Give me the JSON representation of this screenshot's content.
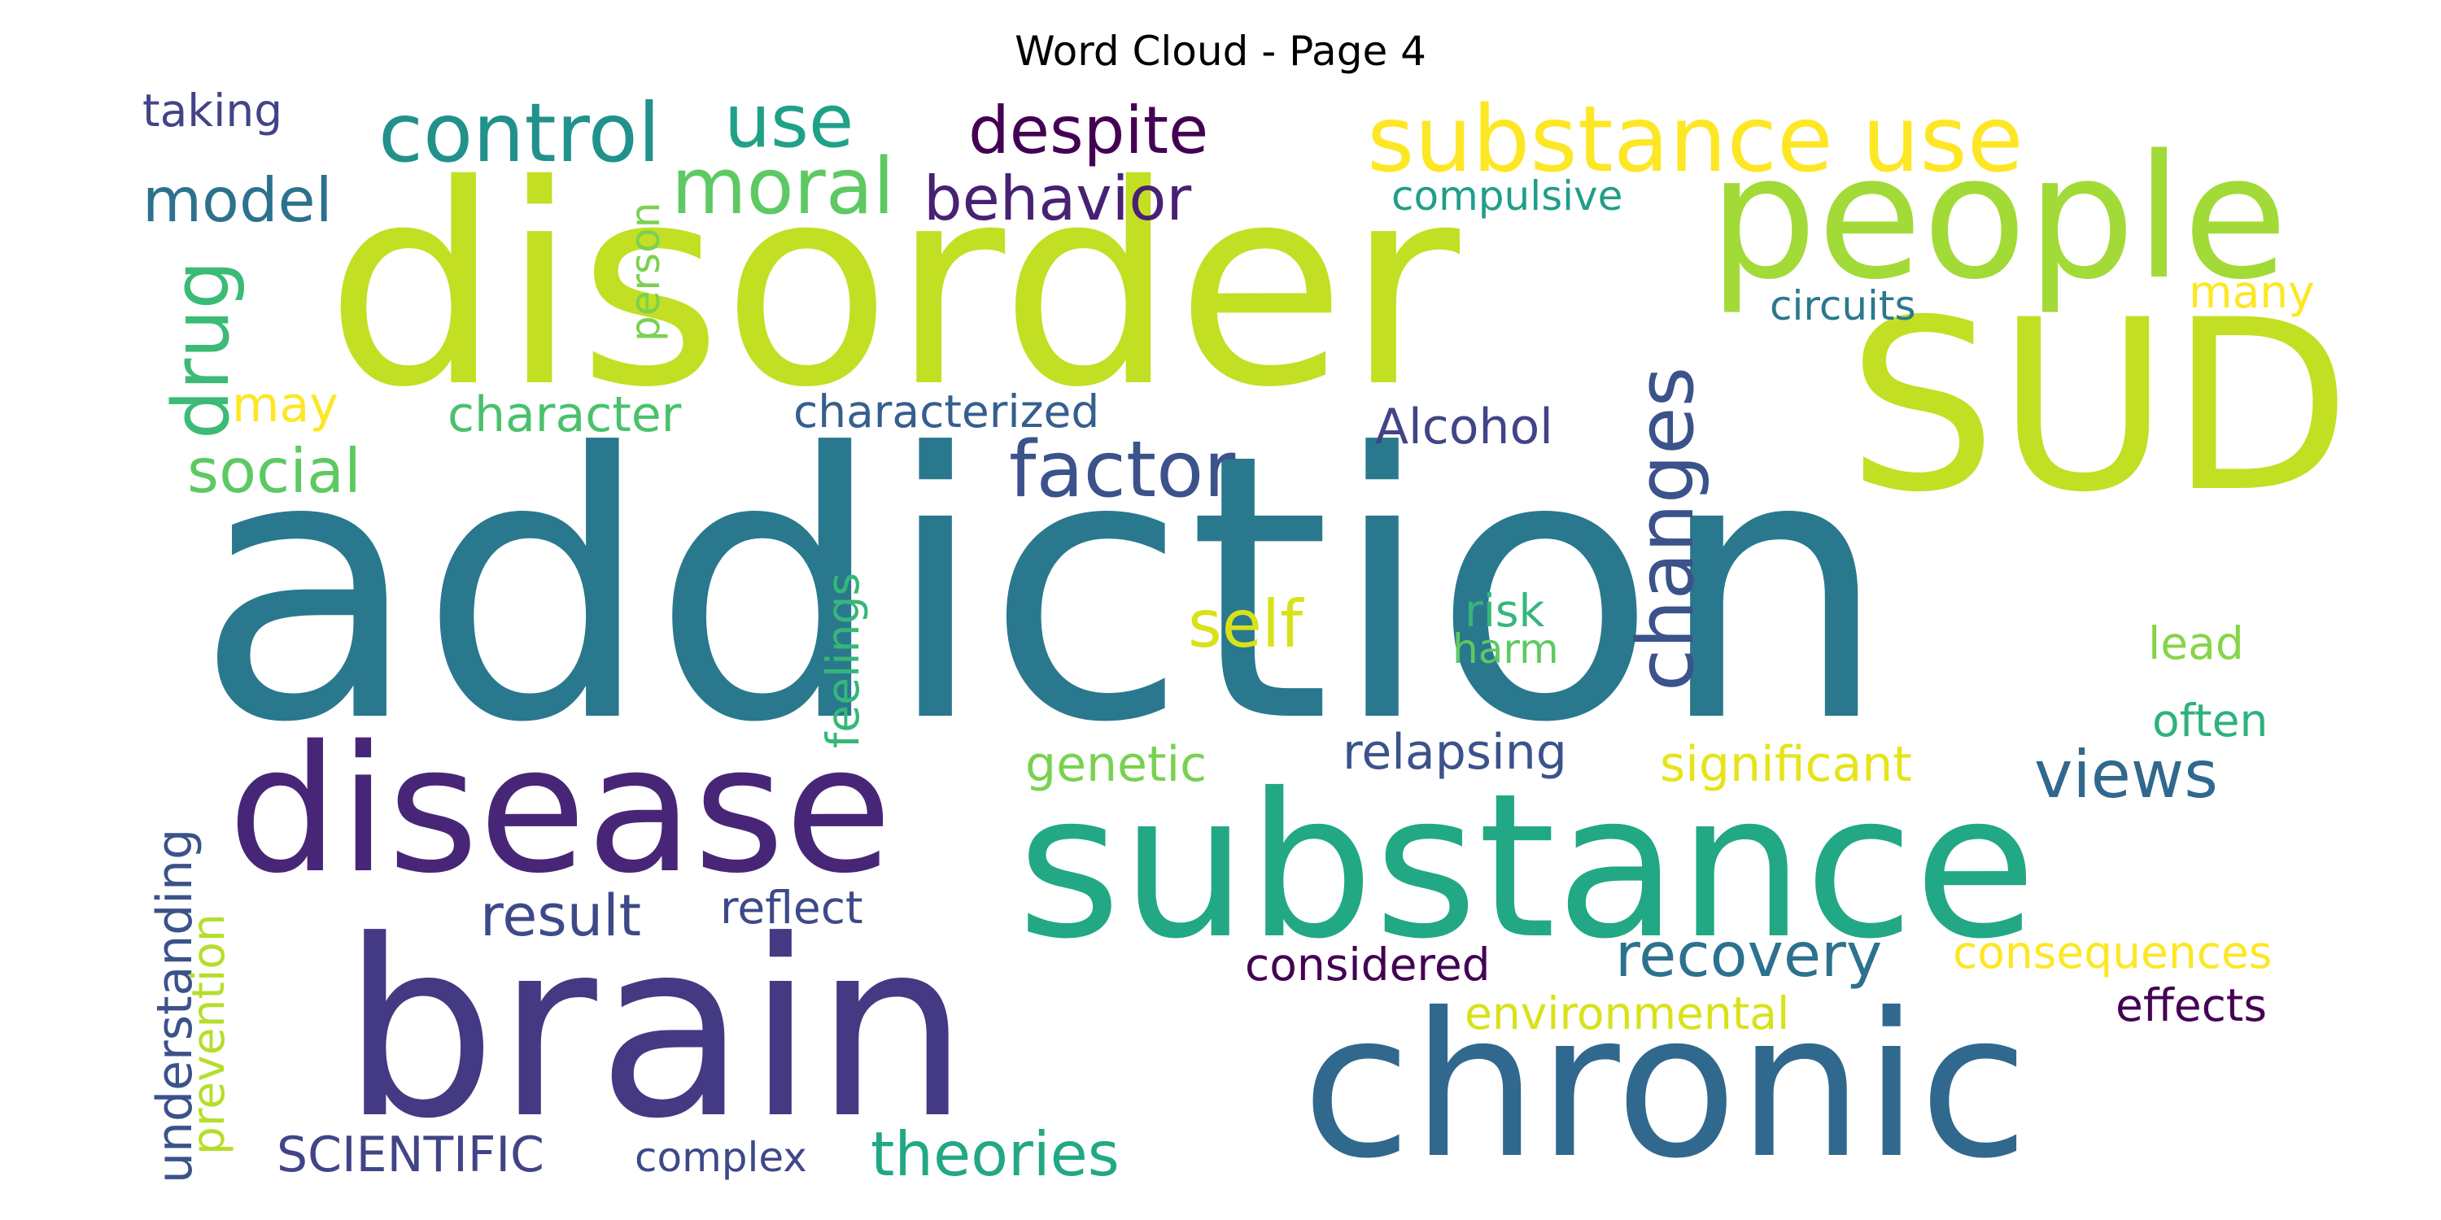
{
  "title": "Word Cloud - Page 4",
  "words": [
    {
      "text": "addiction",
      "color": "#2a788e"
    },
    {
      "text": "disorder",
      "color": "#c2df23"
    },
    {
      "text": "substance",
      "color": "#22a884"
    },
    {
      "text": "brain",
      "color": "#443a83"
    },
    {
      "text": "chronic",
      "color": "#31688e"
    },
    {
      "text": "SUD",
      "color": "#c2df23"
    },
    {
      "text": "people",
      "color": "#a2da37"
    },
    {
      "text": "disease",
      "color": "#482677"
    },
    {
      "text": "substance use",
      "color": "#fde725"
    },
    {
      "text": "changes",
      "color": "#3b528b"
    },
    {
      "text": "control",
      "color": "#21918c"
    },
    {
      "text": "factor",
      "color": "#3b528b"
    },
    {
      "text": "moral",
      "color": "#5ec962"
    },
    {
      "text": "use",
      "color": "#1fa187"
    },
    {
      "text": "despite",
      "color": "#440154"
    },
    {
      "text": "behavior",
      "color": "#482173"
    },
    {
      "text": "drug",
      "color": "#3bbb75"
    },
    {
      "text": "model",
      "color": "#2c728e"
    },
    {
      "text": "views",
      "color": "#31688e"
    },
    {
      "text": "recovery",
      "color": "#2c728e"
    },
    {
      "text": "self",
      "color": "#d8e219"
    },
    {
      "text": "theories",
      "color": "#22a884"
    },
    {
      "text": "social",
      "color": "#5ec962"
    },
    {
      "text": "result",
      "color": "#3e4989"
    },
    {
      "text": "Alcohol",
      "color": "#414487"
    },
    {
      "text": "understanding",
      "color": "#3b528b"
    },
    {
      "text": "prevention",
      "color": "#b5de2b"
    },
    {
      "text": "SCIENTIFIC",
      "color": "#414487"
    },
    {
      "text": "genetic",
      "color": "#7ad151"
    },
    {
      "text": "significant",
      "color": "#e5e419"
    },
    {
      "text": "relapsing",
      "color": "#3b528b"
    },
    {
      "text": "character",
      "color": "#4ac16d"
    },
    {
      "text": "characterized",
      "color": "#355f8d"
    },
    {
      "text": "compulsive",
      "color": "#1f9e89"
    },
    {
      "text": "circuits",
      "color": "#2a788e"
    },
    {
      "text": "environmental",
      "color": "#d8e219"
    },
    {
      "text": "consequences",
      "color": "#fde725"
    },
    {
      "text": "considered",
      "color": "#440154"
    },
    {
      "text": "reflect",
      "color": "#3e4989"
    },
    {
      "text": "complex",
      "color": "#3e4989"
    },
    {
      "text": "feelings",
      "color": "#35b779"
    },
    {
      "text": "person",
      "color": "#7ad151"
    },
    {
      "text": "taking",
      "color": "#414487"
    },
    {
      "text": "many",
      "color": "#fde725"
    },
    {
      "text": "may",
      "color": "#fde725"
    },
    {
      "text": "risk",
      "color": "#35b779"
    },
    {
      "text": "harm",
      "color": "#5ec962"
    },
    {
      "text": "lead",
      "color": "#86d549"
    },
    {
      "text": "often",
      "color": "#2db27d"
    },
    {
      "text": "effects",
      "color": "#440154"
    }
  ]
}
